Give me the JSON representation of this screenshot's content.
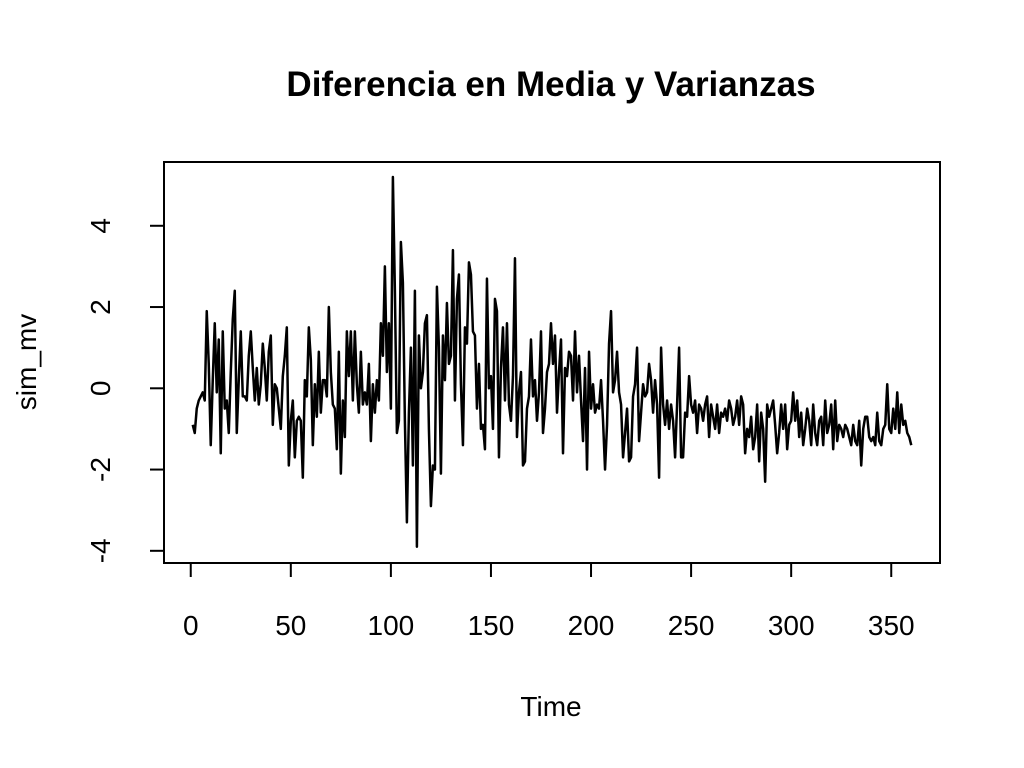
{
  "chart_data": {
    "type": "line",
    "title": "Diferencia en Media y Varianzas",
    "x_label": "Time",
    "y_label": "sim_mv",
    "color": "#000000",
    "xlim": [
      -13.36,
      374.36
    ],
    "ylim": [
      -4.3,
      5.57
    ],
    "xticks": [
      0,
      50,
      100,
      150,
      200,
      250,
      300,
      350
    ],
    "yticks": [
      -4,
      -2,
      0,
      2,
      4
    ],
    "x": [
      1,
      2,
      3,
      4,
      5,
      6,
      7,
      8,
      9,
      10,
      11,
      12,
      13,
      14,
      15,
      16,
      17,
      18,
      19,
      20,
      21,
      22,
      23,
      24,
      25,
      26,
      27,
      28,
      29,
      30,
      31,
      32,
      33,
      34,
      35,
      36,
      37,
      38,
      39,
      40,
      41,
      42,
      43,
      44,
      45,
      46,
      47,
      48,
      49,
      50,
      51,
      52,
      53,
      54,
      55,
      56,
      57,
      58,
      59,
      60,
      61,
      62,
      63,
      64,
      65,
      66,
      67,
      68,
      69,
      70,
      71,
      72,
      73,
      74,
      75,
      76,
      77,
      78,
      79,
      80,
      81,
      82,
      83,
      84,
      85,
      86,
      87,
      88,
      89,
      90,
      91,
      92,
      93,
      94,
      95,
      96,
      97,
      98,
      99,
      100,
      101,
      102,
      103,
      104,
      105,
      106,
      107,
      108,
      109,
      110,
      111,
      112,
      113,
      114,
      115,
      116,
      117,
      118,
      119,
      120,
      121,
      122,
      123,
      124,
      125,
      126,
      127,
      128,
      129,
      130,
      131,
      132,
      133,
      134,
      135,
      136,
      137,
      138,
      139,
      140,
      141,
      142,
      143,
      144,
      145,
      146,
      147,
      148,
      149,
      150,
      151,
      152,
      153,
      154,
      155,
      156,
      157,
      158,
      159,
      160,
      161,
      162,
      163,
      164,
      165,
      166,
      167,
      168,
      169,
      170,
      171,
      172,
      173,
      174,
      175,
      176,
      177,
      178,
      179,
      180,
      181,
      182,
      183,
      184,
      185,
      186,
      187,
      188,
      189,
      190,
      191,
      192,
      193,
      194,
      195,
      196,
      197,
      198,
      199,
      200,
      201,
      202,
      203,
      204,
      205,
      206,
      207,
      208,
      209,
      210,
      211,
      212,
      213,
      214,
      215,
      216,
      217,
      218,
      219,
      220,
      221,
      222,
      223,
      224,
      225,
      226,
      227,
      228,
      229,
      230,
      231,
      232,
      233,
      234,
      235,
      236,
      237,
      238,
      239,
      240,
      241,
      242,
      243,
      244,
      245,
      246,
      247,
      248,
      249,
      250,
      251,
      252,
      253,
      254,
      255,
      256,
      257,
      258,
      259,
      260,
      261,
      262,
      263,
      264,
      265,
      266,
      267,
      268,
      269,
      270,
      271,
      272,
      273,
      274,
      275,
      276,
      277,
      278,
      279,
      280,
      281,
      282,
      283,
      284,
      285,
      286,
      287,
      288,
      289,
      290,
      291,
      292,
      293,
      294,
      295,
      296,
      297,
      298,
      299,
      300,
      301,
      302,
      303,
      304,
      305,
      306,
      307,
      308,
      309,
      310,
      311,
      312,
      313,
      314,
      315,
      316,
      317,
      318,
      319,
      320,
      321,
      322,
      323,
      324,
      325,
      326,
      327,
      328,
      329,
      330,
      331,
      332,
      333,
      334,
      335,
      336,
      337,
      338,
      339,
      340,
      341,
      342,
      343,
      344,
      345,
      346,
      347,
      348,
      349,
      350,
      351,
      352,
      353,
      354,
      355,
      356,
      357,
      358,
      359,
      360
    ],
    "values": [
      -0.9,
      -1.1,
      -0.5,
      -0.3,
      -0.2,
      -0.1,
      -0.3,
      1.9,
      0.6,
      -1.4,
      0.2,
      1.6,
      -0.1,
      1.2,
      -1.6,
      1.4,
      -0.5,
      -0.3,
      -1.1,
      0.4,
      1.7,
      2.4,
      -1.1,
      0.2,
      1.4,
      -0.2,
      -0.2,
      -0.3,
      0.8,
      1.4,
      0.5,
      -0.3,
      0.5,
      -0.4,
      0.1,
      1.1,
      0.5,
      -0.3,
      0.9,
      1.3,
      -0.9,
      0.1,
      0.0,
      -0.5,
      -1.0,
      0.3,
      0.8,
      1.5,
      -1.9,
      -0.8,
      -0.3,
      -1.7,
      -0.8,
      -0.7,
      -0.8,
      -2.2,
      0.2,
      -0.2,
      1.5,
      0.7,
      -1.4,
      0.1,
      -0.7,
      0.9,
      -0.6,
      0.2,
      0.2,
      -0.2,
      2.0,
      0.4,
      -0.4,
      -0.5,
      -1.5,
      0.9,
      -2.1,
      -0.3,
      -1.2,
      1.4,
      0.3,
      1.4,
      -0.3,
      1.4,
      0.1,
      -0.6,
      0.9,
      -0.4,
      -0.1,
      -0.4,
      0.6,
      -1.3,
      0.1,
      -0.6,
      0.2,
      -0.3,
      1.6,
      0.8,
      3.0,
      0.4,
      1.6,
      -0.5,
      5.2,
      2.4,
      -1.1,
      -0.8,
      3.6,
      2.6,
      -0.8,
      -3.3,
      -0.6,
      1.0,
      -1.9,
      2.4,
      -3.9,
      1.3,
      0.0,
      0.4,
      1.6,
      1.8,
      -1.0,
      -2.9,
      -1.9,
      -2.0,
      2.5,
      1.0,
      -2.1,
      1.3,
      0.2,
      2.1,
      0.6,
      0.8,
      3.4,
      -0.3,
      2.2,
      2.8,
      0.1,
      -1.4,
      1.5,
      1.1,
      3.1,
      2.8,
      1.4,
      1.3,
      -0.5,
      0.6,
      -1.0,
      -0.9,
      -1.5,
      2.7,
      0.0,
      0.3,
      -1.0,
      2.2,
      1.9,
      -1.7,
      0.5,
      1.5,
      -0.3,
      1.6,
      -0.4,
      -0.8,
      0.3,
      3.2,
      -1.2,
      -0.1,
      0.4,
      -1.9,
      -1.8,
      -0.5,
      -0.2,
      1.2,
      -0.2,
      0.2,
      -0.8,
      -0.1,
      1.4,
      -1.1,
      -0.5,
      0.4,
      0.6,
      1.6,
      0.6,
      1.3,
      -0.6,
      0.4,
      1.2,
      -1.6,
      0.5,
      0.3,
      0.9,
      0.8,
      -0.3,
      1.4,
      -0.1,
      0.8,
      -0.3,
      -1.3,
      0.5,
      -2.0,
      0.9,
      -0.5,
      0.1,
      -0.6,
      -0.4,
      -0.5,
      0.2,
      -0.8,
      -2.0,
      -0.9,
      1.1,
      1.9,
      -0.1,
      0.2,
      0.9,
      -0.1,
      -0.4,
      -1.7,
      -1.1,
      -0.5,
      -1.8,
      -1.7,
      -0.2,
      0.1,
      1.0,
      -1.3,
      -0.6,
      0.1,
      -0.2,
      -0.1,
      0.6,
      0.2,
      -0.6,
      0.2,
      -0.4,
      -2.2,
      1.0,
      -0.4,
      -0.9,
      -0.3,
      -1.0,
      -0.4,
      -0.8,
      -1.7,
      -0.4,
      1.0,
      -1.7,
      -1.7,
      -0.6,
      -0.7,
      0.3,
      -0.4,
      -0.6,
      -0.3,
      -1.1,
      -0.4,
      -0.5,
      -0.8,
      -0.4,
      -0.2,
      -1.2,
      -0.4,
      -0.7,
      -1.0,
      -0.4,
      -1.1,
      -0.6,
      -0.7,
      -0.5,
      -0.8,
      -0.3,
      -0.5,
      -0.9,
      -0.7,
      -0.3,
      -0.9,
      -0.2,
      -0.4,
      -1.6,
      -1.0,
      -1.2,
      -0.7,
      -1.5,
      -1.2,
      -0.4,
      -1.8,
      -0.6,
      -1.0,
      -2.3,
      -0.4,
      -0.7,
      -0.5,
      -0.3,
      -0.9,
      -1.6,
      -1.1,
      -0.4,
      -1.0,
      -0.4,
      -1.5,
      -0.9,
      -0.8,
      -0.1,
      -0.8,
      -0.3,
      -1.2,
      -0.6,
      -1.4,
      -1.0,
      -0.5,
      -0.8,
      -1.4,
      -0.4,
      -1.1,
      -1.4,
      -0.8,
      -0.7,
      -1.4,
      -0.3,
      -1.1,
      -0.9,
      -0.4,
      -1.5,
      -0.3,
      -1.3,
      -0.9,
      -1.0,
      -1.2,
      -0.9,
      -1.0,
      -1.2,
      -1.4,
      -0.9,
      -1.3,
      -1.4,
      -0.8,
      -1.9,
      -1.0,
      -0.7,
      -0.7,
      -1.2,
      -1.3,
      -1.2,
      -1.4,
      -0.6,
      -1.3,
      -1.4,
      -1.0,
      -0.9,
      0.1,
      -1.0,
      -1.1,
      -0.5,
      -1.0,
      -0.1,
      -1.1,
      -0.4,
      -0.9,
      -0.8,
      -1.1,
      -1.2,
      -1.4
    ]
  }
}
